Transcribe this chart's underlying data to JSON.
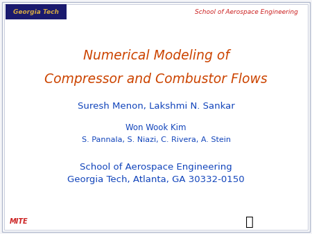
{
  "bg_color": "#ffffff",
  "slide_bg": "#f5f5f8",
  "border_color": "#b0b8cc",
  "title_line1": "Numerical Modeling of",
  "title_line2": "Compressor and Combustor Flows",
  "title_color": "#cc4400",
  "author_line1": "Suresh Menon, Lakshmi N. Sankar",
  "author_line2": "Won Wook Kim",
  "author_line3": "S. Pannala, S. Niazi, C. Rivera, A. Stein",
  "author_color": "#1144bb",
  "institution_line1": "School of Aerospace Engineering",
  "institution_line2": "Georgia Tech, Atlanta, GA 30332-0150",
  "institution_color": "#1144bb",
  "header_school": "School of Aerospace Engineering",
  "header_school_color": "#cc2222",
  "mite_text": "MITE",
  "mite_color": "#cc2222",
  "gt_logo_bg": "#1a1a6e",
  "gt_logo_text": "Georgia Tech",
  "gt_logo_text_color": "#d4a843"
}
